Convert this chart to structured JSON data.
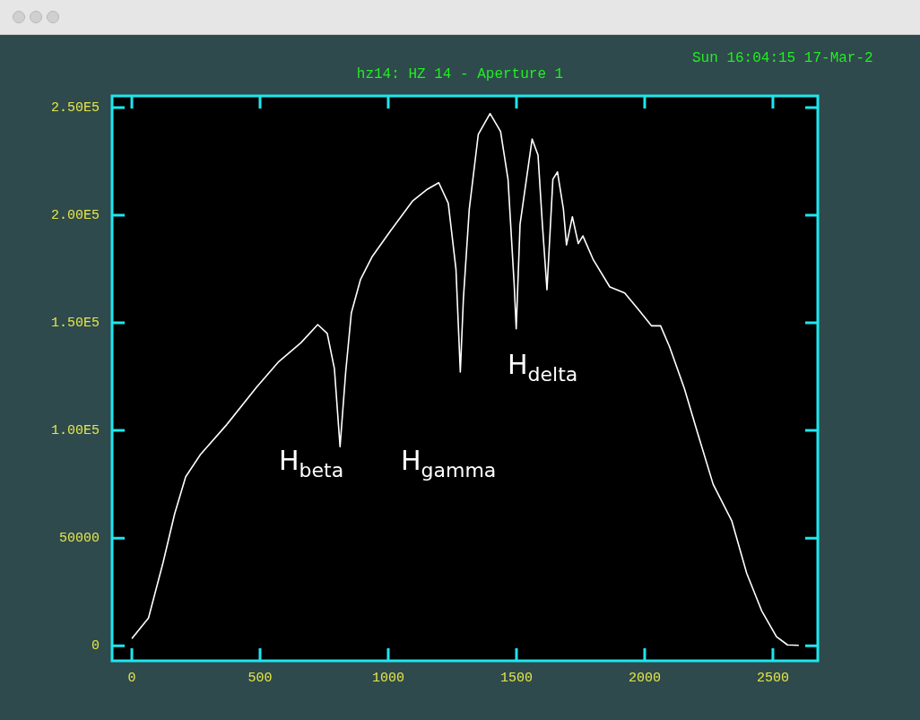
{
  "chart_data": {
    "type": "line",
    "title": "hz14: HZ 14 - Aperture 1",
    "annotations": [
      "Sun 16:04:15 17-Mar-2",
      "H$_{beta}$",
      "H$_{gamma}$",
      "H$_{delta}$"
    ],
    "xlim": [
      -77,
      2675
    ],
    "ylim": [
      -7000,
      255400
    ],
    "xticks": [
      0,
      500,
      1000,
      1500,
      2000,
      2500
    ],
    "yticks": [
      0,
      50000,
      {
        "value": 100000,
        "label": "1.00E5"
      },
      {
        "value": 150000,
        "label": "1.50E5"
      },
      {
        "value": 200000,
        "label": "2.00E5"
      },
      {
        "value": 250000,
        "label": "2.50E5"
      }
    ],
    "grid": false,
    "legend": false,
    "marker": "none",
    "line_style": "solid",
    "series": [
      {
        "color": "#ffffff",
        "x": [
          0,
          65,
          122,
          167,
          210,
          268,
          370,
          486,
          573,
          660,
          725,
          762,
          790,
          812,
          834,
          856,
          892,
          936,
          1008,
          1094,
          1153,
          1197,
          1234,
          1264,
          1281,
          1293,
          1316,
          1351,
          1397,
          1438,
          1467,
          1491,
          1499,
          1514,
          1561,
          1584,
          1601,
          1619,
          1642,
          1660,
          1683,
          1695,
          1718,
          1741,
          1759,
          1800,
          1864,
          1922,
          1980,
          2027,
          2062,
          2097,
          2155,
          2207,
          2267,
          2340,
          2398,
          2456,
          2514,
          2557,
          2601
        ],
        "values": [
          3300,
          12900,
          38700,
          61300,
          78500,
          88900,
          102700,
          120000,
          132000,
          140800,
          149200,
          145100,
          128700,
          92500,
          127100,
          154600,
          170200,
          180500,
          192600,
          206500,
          212100,
          215100,
          205600,
          175000,
          127100,
          161200,
          202900,
          237500,
          247200,
          238900,
          216700,
          168000,
          147200,
          195800,
          235400,
          227900,
          195800,
          165400,
          216700,
          220100,
          202900,
          186200,
          199300,
          186800,
          190400,
          179200,
          166700,
          163900,
          155500,
          148600,
          148600,
          138900,
          119400,
          98600,
          75000,
          57900,
          33600,
          16300,
          4200,
          400,
          200
        ]
      }
    ]
  }
}
